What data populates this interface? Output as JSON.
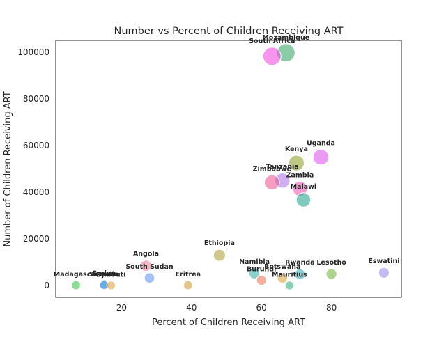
{
  "chart_data": {
    "type": "scatter",
    "title": "Number vs Percent of Children Receiving ART",
    "xlabel": "Percent of Children Receiving ART",
    "ylabel": "Number of Children Receiving ART",
    "xlim": [
      1.2,
      100
    ],
    "ylim": [
      -5000,
      105000
    ],
    "xticks": [
      20,
      40,
      60,
      80
    ],
    "yticks": [
      0,
      20000,
      40000,
      60000,
      80000,
      100000
    ],
    "grid": false,
    "legend": "none",
    "point_opacity": 0.55,
    "points": [
      {
        "label": "Mozambique",
        "x": 67,
        "y": 99700,
        "color": "#2ca25f"
      },
      {
        "label": "South Africa",
        "x": 63,
        "y": 98200,
        "color": "#ee3de0"
      },
      {
        "label": "Uganda",
        "x": 77,
        "y": 55000,
        "color": "#d94bec"
      },
      {
        "label": "Kenya",
        "x": 70,
        "y": 52500,
        "color": "#8a9a1e"
      },
      {
        "label": "Tanzania",
        "x": 66,
        "y": 45000,
        "color": "#a86de8"
      },
      {
        "label": "Zimbabwe",
        "x": 63,
        "y": 44200,
        "color": "#ec4f8e"
      },
      {
        "label": "Zambia",
        "x": 71,
        "y": 41500,
        "color": "#ec4fb0"
      },
      {
        "label": "Malawi",
        "x": 72,
        "y": 36700,
        "color": "#1aa088"
      },
      {
        "label": "Ethiopia",
        "x": 48,
        "y": 13000,
        "color": "#a79b2a"
      },
      {
        "label": "Angola",
        "x": 27,
        "y": 8500,
        "color": "#f07a94"
      },
      {
        "label": "Namibia",
        "x": 58,
        "y": 5200,
        "color": "#2aa9a4"
      },
      {
        "label": "Rwanda",
        "x": 71,
        "y": 4900,
        "color": "#2aa3b5"
      },
      {
        "label": "Lesotho",
        "x": 80,
        "y": 5000,
        "color": "#6aae2e"
      },
      {
        "label": "Eswatini",
        "x": 95,
        "y": 5500,
        "color": "#8f86ec"
      },
      {
        "label": "Botswana",
        "x": 66,
        "y": 3300,
        "color": "#d7a030"
      },
      {
        "label": "Burundi",
        "x": 60,
        "y": 2300,
        "color": "#ee6e50"
      },
      {
        "label": "South Sudan",
        "x": 28,
        "y": 3300,
        "color": "#5b8fef"
      },
      {
        "label": "Sudan",
        "x": 15,
        "y": 600,
        "color": "#2aa8d0"
      },
      {
        "label": "Somalia",
        "x": 15,
        "y": 200,
        "color": "#4a8ee8"
      },
      {
        "label": "Djibouti",
        "x": 17,
        "y": 100,
        "color": "#e09a3a"
      },
      {
        "label": "Madagascar",
        "x": 7,
        "y": 200,
        "color": "#2cc03a"
      },
      {
        "label": "Eritrea",
        "x": 39,
        "y": 200,
        "color": "#c89a2a"
      },
      {
        "label": "Mauritius",
        "x": 68,
        "y": 100,
        "color": "#2aaa78"
      }
    ]
  }
}
